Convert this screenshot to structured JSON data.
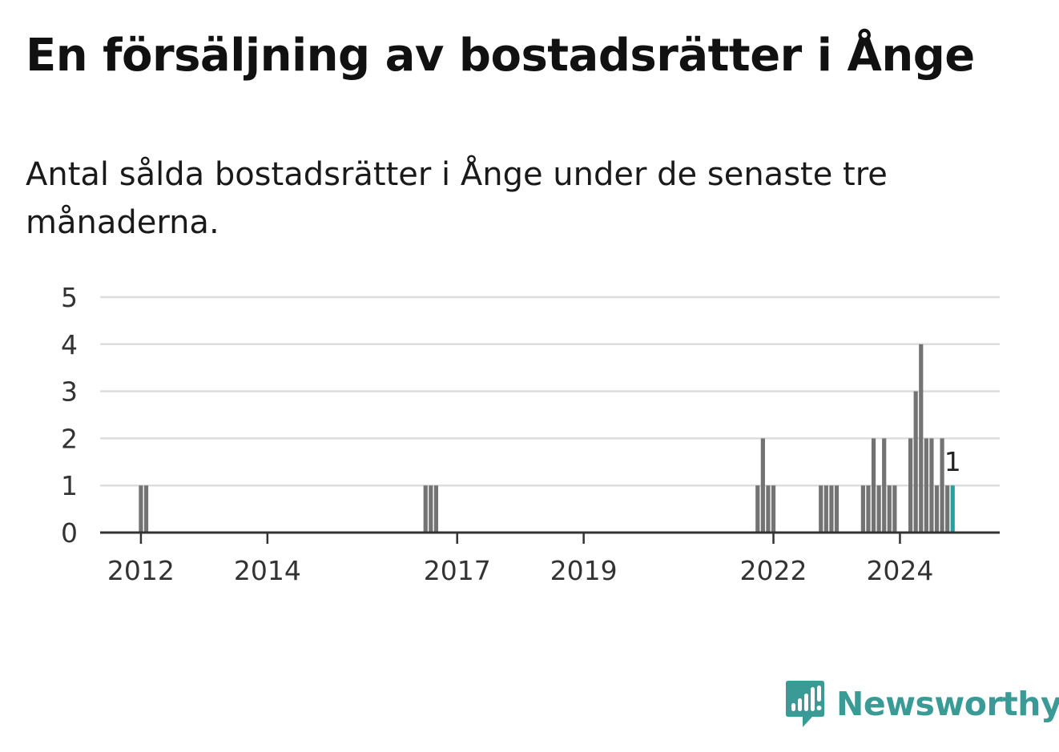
{
  "title": "En försäljning av bostadsrätter i Ånge",
  "subtitle": "Antal sålda bostadsrätter i Ånge under de senaste tre månaderna.",
  "logo": {
    "text": "Newsworthy",
    "icon": "newsworthy-logo-icon",
    "color": "#3a9a95"
  },
  "colors": {
    "bar": "#737373",
    "highlight": "#24a1a1",
    "grid": "#dddddd",
    "axis": "#333333"
  },
  "chart_data": {
    "type": "bar",
    "title": "",
    "xlabel": "",
    "ylabel": "",
    "ylim": [
      0,
      5
    ],
    "yticks": [
      0,
      1,
      2,
      3,
      4,
      5
    ],
    "xlim": [
      "2011-09",
      "2025-10"
    ],
    "xticks": [
      {
        "label": "2012",
        "date": "2012-01"
      },
      {
        "label": "2014",
        "date": "2014-01"
      },
      {
        "label": "2017",
        "date": "2017-01"
      },
      {
        "label": "2019",
        "date": "2019-01"
      },
      {
        "label": "2022",
        "date": "2022-01"
      },
      {
        "label": "2024",
        "date": "2024-01"
      }
    ],
    "grid": true,
    "series": [
      {
        "values": [
          {
            "date": "2012-01",
            "value": 1
          },
          {
            "date": "2012-02",
            "value": 1
          },
          {
            "date": "2016-07",
            "value": 1
          },
          {
            "date": "2016-08",
            "value": 1
          },
          {
            "date": "2016-09",
            "value": 1
          },
          {
            "date": "2021-10",
            "value": 1
          },
          {
            "date": "2021-11",
            "value": 2
          },
          {
            "date": "2021-12",
            "value": 1
          },
          {
            "date": "2022-01",
            "value": 1
          },
          {
            "date": "2022-10",
            "value": 1
          },
          {
            "date": "2022-11",
            "value": 1
          },
          {
            "date": "2022-12",
            "value": 1
          },
          {
            "date": "2023-01",
            "value": 1
          },
          {
            "date": "2023-06",
            "value": 1
          },
          {
            "date": "2023-07",
            "value": 1
          },
          {
            "date": "2023-08",
            "value": 2
          },
          {
            "date": "2023-09",
            "value": 1
          },
          {
            "date": "2023-10",
            "value": 2
          },
          {
            "date": "2023-11",
            "value": 1
          },
          {
            "date": "2023-12",
            "value": 1
          },
          {
            "date": "2024-03",
            "value": 2
          },
          {
            "date": "2024-04",
            "value": 3
          },
          {
            "date": "2024-05",
            "value": 4
          },
          {
            "date": "2024-06",
            "value": 2
          },
          {
            "date": "2024-07",
            "value": 2
          },
          {
            "date": "2024-08",
            "value": 1
          },
          {
            "date": "2024-09",
            "value": 2
          },
          {
            "date": "2024-10",
            "value": 1
          },
          {
            "date": "2024-11",
            "value": 1,
            "highlight": true
          }
        ]
      }
    ],
    "annotations": [
      {
        "date": "2024-11",
        "value": 1,
        "text": "1"
      }
    ]
  }
}
